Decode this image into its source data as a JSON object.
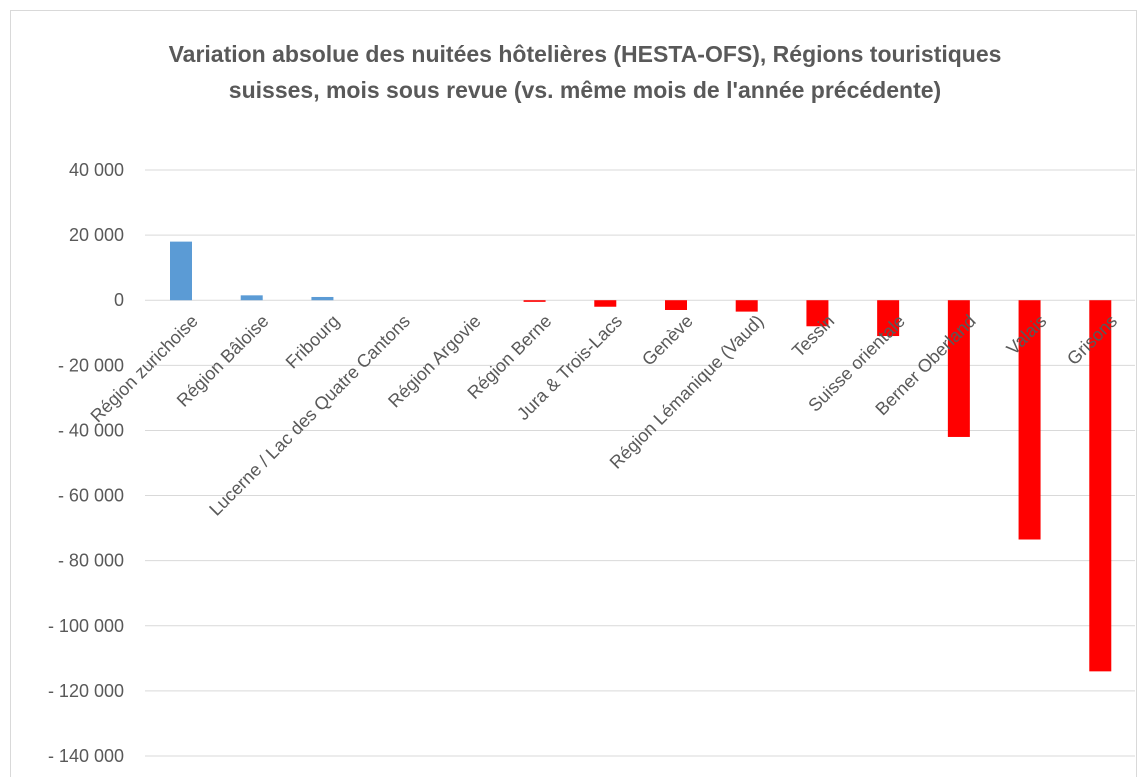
{
  "chart_data": {
    "type": "bar",
    "title_lines": [
      "Variation absolue des nuitées hôtelières (HESTA-OFS), Régions touristiques",
      "suisses, mois sous revue (vs. même mois de l'année précédente)"
    ],
    "categories": [
      "Région zurichoise",
      "Région Bâloise",
      "Fribourg",
      "Lucerne / Lac des Quatre Cantons",
      "Région Argovie",
      "Région Berne",
      "Jura & Trois-Lacs",
      "Genève",
      "Région Lémanique (Vaud)",
      "Tessin",
      "Suisse orientale",
      "Berner Oberland",
      "Valais",
      "Grisons"
    ],
    "values": [
      18000,
      1500,
      1000,
      0,
      0,
      -500,
      -2000,
      -3000,
      -3500,
      -8000,
      -11000,
      -42000,
      -73500,
      -114000
    ],
    "ylim": [
      -140000,
      40000
    ],
    "yticks": [
      40000,
      20000,
      0,
      -20000,
      -40000,
      -60000,
      -80000,
      -100000,
      -120000,
      -140000
    ],
    "ytick_labels": [
      "40 000",
      "20 000",
      "0",
      "- 20 000",
      "- 40 000",
      "- 60 000",
      "- 80 000",
      "- 100 000",
      "- 120 000",
      "- 140 000"
    ],
    "grid": true,
    "colors": {
      "positive": "#5b9bd5",
      "negative": "#ff0000",
      "grid": "#d9d9d9",
      "text": "#595959"
    }
  }
}
